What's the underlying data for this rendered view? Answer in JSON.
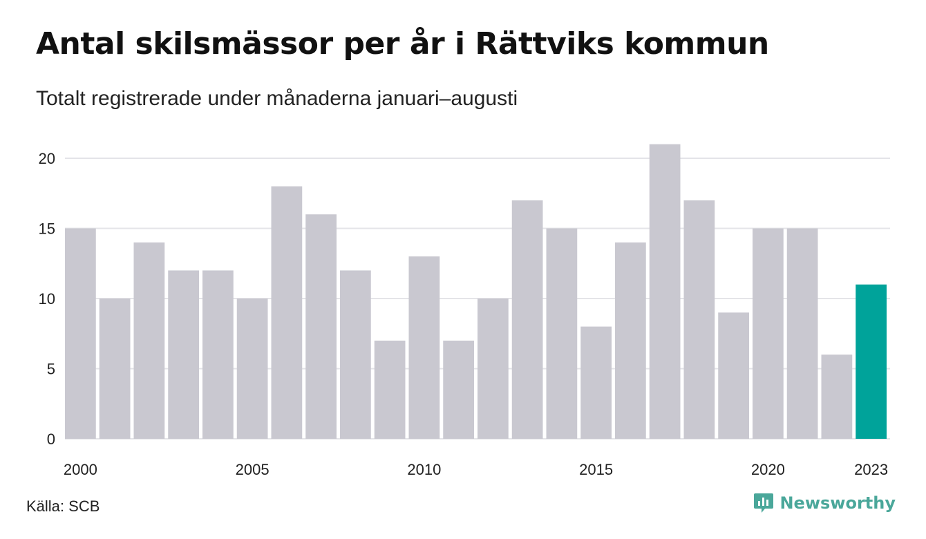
{
  "header": {
    "title": "Antal skilsmässor per år i Rättviks kommun",
    "subtitle": "Totalt registrerade under månaderna januari–augusti"
  },
  "footer": {
    "source": "Källa: SCB",
    "brand": "Newsworthy"
  },
  "colors": {
    "bar": "#c9c8d0",
    "highlight": "#00a39a",
    "gridline": "#e4e4e8",
    "logo": "#4aa79a"
  },
  "icons": {
    "logo": "newsworthy-logo-icon"
  },
  "chart_data": {
    "type": "bar",
    "title": "Antal skilsmässor per år i Rättviks kommun",
    "subtitle": "Totalt registrerade under månaderna januari–augusti",
    "categories": [
      2000,
      2001,
      2002,
      2003,
      2004,
      2005,
      2006,
      2007,
      2008,
      2009,
      2010,
      2011,
      2012,
      2013,
      2014,
      2015,
      2016,
      2017,
      2018,
      2019,
      2020,
      2021,
      2022,
      2023
    ],
    "values": [
      15,
      10,
      14,
      12,
      12,
      10,
      18,
      16,
      12,
      7,
      13,
      7,
      10,
      17,
      15,
      8,
      14,
      21,
      17,
      9,
      15,
      15,
      6,
      11
    ],
    "highlighted_category": 2023,
    "ylim": [
      0,
      21
    ],
    "yticks": [
      0,
      5,
      10,
      15,
      20
    ],
    "xtick_labels": [
      "2000",
      "2005",
      "2010",
      "2015",
      "2020",
      "2023"
    ],
    "xlabel": "",
    "ylabel": "",
    "grid": "horizontal"
  }
}
